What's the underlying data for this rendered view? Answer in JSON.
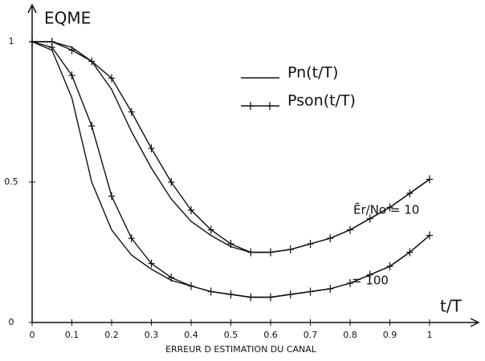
{
  "chart_data": {
    "type": "line",
    "y_label": "EQME",
    "x_label": "t/T",
    "x_title": "ERREUR D ESTIMATION DU CANAL",
    "annotations": [
      "Ēr/No = 10",
      "= 100"
    ],
    "x": [
      0,
      0.05,
      0.1,
      0.15,
      0.2,
      0.25,
      0.3,
      0.35,
      0.4,
      0.45,
      0.5,
      0.55,
      0.6,
      0.65,
      0.7,
      0.75,
      0.8,
      0.85,
      0.9,
      0.95,
      1
    ],
    "series": [
      {
        "name": "Pn(t/T)",
        "color": "#111",
        "marker": "none",
        "values": [
          1,
          1,
          0.98,
          0.93,
          0.83,
          0.68,
          0.55,
          0.44,
          0.36,
          0.31,
          0.27,
          0.25,
          0.25,
          0.26,
          0.28,
          0.3,
          0.33,
          0.37,
          0.41,
          0.46,
          0.51
        ]
      },
      {
        "name": "Pson(t/T)",
        "color": "#111",
        "marker": "+",
        "values": [
          1,
          1,
          0.97,
          0.93,
          0.87,
          0.75,
          0.62,
          0.5,
          0.4,
          0.33,
          0.28,
          0.25,
          0.25,
          0.26,
          0.28,
          0.3,
          0.33,
          0.37,
          0.41,
          0.46,
          0.51
        ]
      },
      {
        "name": "Pn(t/T)",
        "color": "#111",
        "marker": "none",
        "values": [
          1,
          0.97,
          0.8,
          0.5,
          0.33,
          0.24,
          0.19,
          0.15,
          0.13,
          0.11,
          0.1,
          0.09,
          0.09,
          0.1,
          0.11,
          0.12,
          0.14,
          0.17,
          0.2,
          0.25,
          0.31
        ]
      },
      {
        "name": "Pson(t/T)",
        "color": "#111",
        "marker": "+",
        "values": [
          1,
          0.98,
          0.88,
          0.7,
          0.45,
          0.3,
          0.21,
          0.16,
          0.13,
          0.11,
          0.1,
          0.09,
          0.09,
          0.1,
          0.11,
          0.12,
          0.14,
          0.17,
          0.2,
          0.25,
          0.31
        ]
      }
    ],
    "xlim": [
      0,
      1
    ],
    "ylim": [
      0,
      1
    ],
    "xticks": [
      0,
      0.1,
      0.2,
      0.3,
      0.4,
      0.5,
      0.6,
      0.7,
      0.8,
      0.9,
      1
    ],
    "yticks": [
      0,
      0.5,
      1
    ],
    "grid": false
  }
}
